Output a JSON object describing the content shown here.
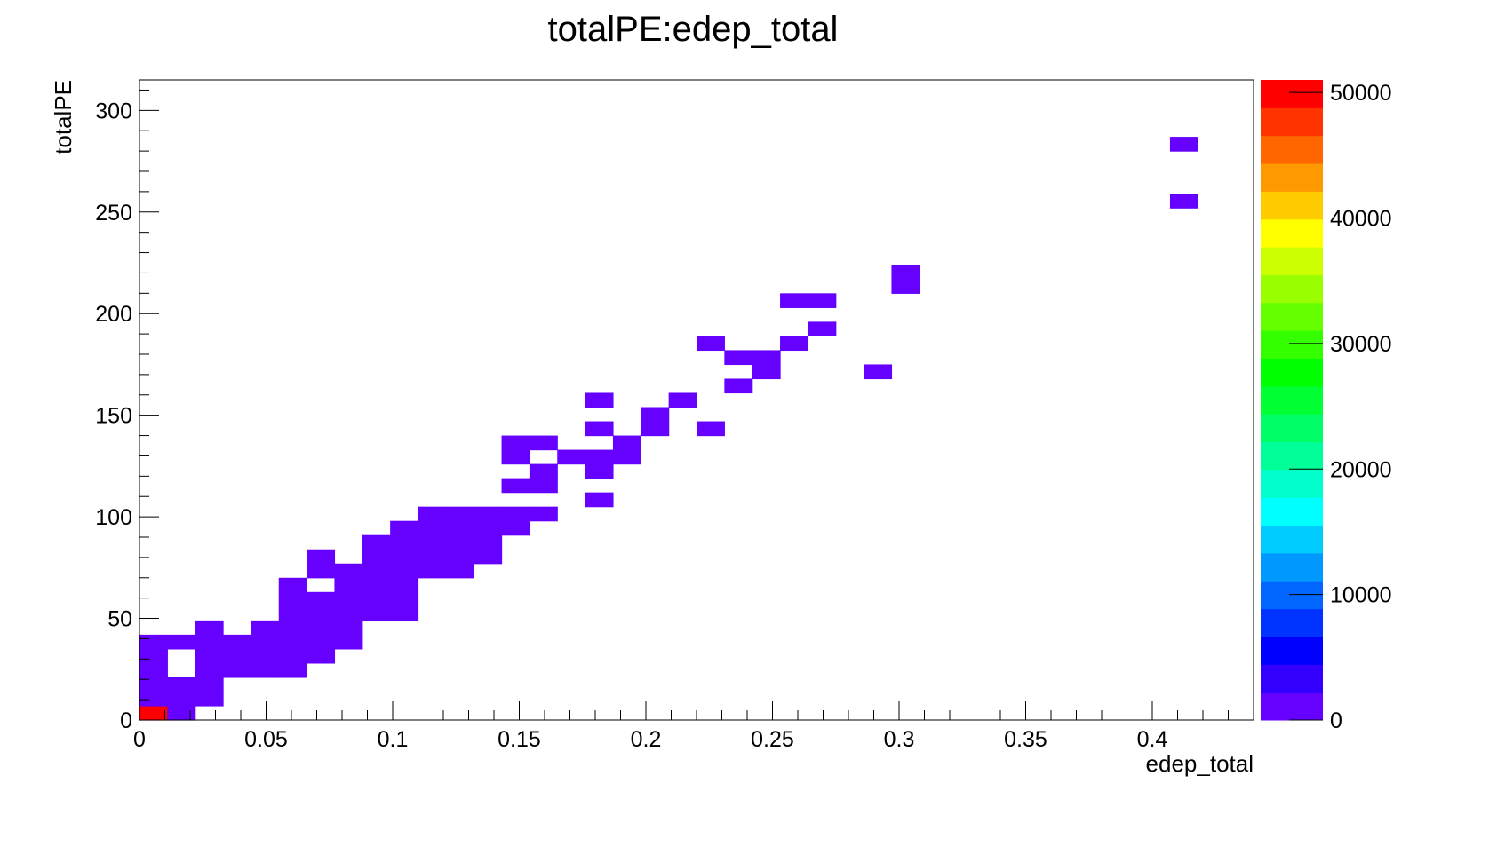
{
  "chart_data": {
    "type": "heatmap",
    "title": "totalPE:edep_total",
    "xlabel": "edep_total",
    "ylabel": "totalPE",
    "xlim": [
      0,
      0.44
    ],
    "ylim": [
      0,
      315
    ],
    "x_ticks": [
      "0",
      "0.05",
      "0.1",
      "0.15",
      "0.2",
      "0.25",
      "0.3",
      "0.35",
      "0.4"
    ],
    "x_tick_values": [
      0,
      0.05,
      0.1,
      0.15,
      0.2,
      0.25,
      0.3,
      0.35,
      0.4
    ],
    "y_ticks": [
      "0",
      "50",
      "100",
      "150",
      "200",
      "250",
      "300"
    ],
    "y_tick_values": [
      0,
      50,
      100,
      150,
      200,
      250,
      300
    ],
    "colorbar": {
      "ticks": [
        "0",
        "10000",
        "20000",
        "30000",
        "40000",
        "50000"
      ],
      "tick_values": [
        0,
        10000,
        20000,
        30000,
        40000,
        50000
      ],
      "zmax": 51000
    },
    "bin_width": 0.011,
    "bin_height": 7.0,
    "cells": [
      {
        "x": 0.0,
        "y": 0.0,
        "z": 51000
      },
      {
        "x": 0.011,
        "y": 0.0,
        "z": 1
      },
      {
        "x": 0.0,
        "y": 7.0,
        "z": 1
      },
      {
        "x": 0.011,
        "y": 7.0,
        "z": 1
      },
      {
        "x": 0.022,
        "y": 7.0,
        "z": 1
      },
      {
        "x": 0.0,
        "y": 14.0,
        "z": 1
      },
      {
        "x": 0.011,
        "y": 14.0,
        "z": 1
      },
      {
        "x": 0.022,
        "y": 14.0,
        "z": 1
      },
      {
        "x": 0.0,
        "y": 21.0,
        "z": 1
      },
      {
        "x": 0.022,
        "y": 21.0,
        "z": 1
      },
      {
        "x": 0.033,
        "y": 21.0,
        "z": 1
      },
      {
        "x": 0.044,
        "y": 21.0,
        "z": 1
      },
      {
        "x": 0.055,
        "y": 21.0,
        "z": 1
      },
      {
        "x": 0.0,
        "y": 28.0,
        "z": 1
      },
      {
        "x": 0.022,
        "y": 28.0,
        "z": 1
      },
      {
        "x": 0.033,
        "y": 28.0,
        "z": 1
      },
      {
        "x": 0.044,
        "y": 28.0,
        "z": 1
      },
      {
        "x": 0.055,
        "y": 28.0,
        "z": 1
      },
      {
        "x": 0.066,
        "y": 28.0,
        "z": 1
      },
      {
        "x": 0.0,
        "y": 35.0,
        "z": 1
      },
      {
        "x": 0.011,
        "y": 35.0,
        "z": 1
      },
      {
        "x": 0.022,
        "y": 35.0,
        "z": 1
      },
      {
        "x": 0.033,
        "y": 35.0,
        "z": 1
      },
      {
        "x": 0.044,
        "y": 35.0,
        "z": 1
      },
      {
        "x": 0.055,
        "y": 35.0,
        "z": 1
      },
      {
        "x": 0.066,
        "y": 35.0,
        "z": 1
      },
      {
        "x": 0.077,
        "y": 35.0,
        "z": 1
      },
      {
        "x": 0.022,
        "y": 42.0,
        "z": 1
      },
      {
        "x": 0.044,
        "y": 42.0,
        "z": 1
      },
      {
        "x": 0.055,
        "y": 42.0,
        "z": 1
      },
      {
        "x": 0.066,
        "y": 42.0,
        "z": 1
      },
      {
        "x": 0.077,
        "y": 42.0,
        "z": 1
      },
      {
        "x": 0.055,
        "y": 49.0,
        "z": 1
      },
      {
        "x": 0.066,
        "y": 49.0,
        "z": 1
      },
      {
        "x": 0.077,
        "y": 49.0,
        "z": 1
      },
      {
        "x": 0.088,
        "y": 49.0,
        "z": 1
      },
      {
        "x": 0.099,
        "y": 49.0,
        "z": 1
      },
      {
        "x": 0.055,
        "y": 56.0,
        "z": 1
      },
      {
        "x": 0.066,
        "y": 56.0,
        "z": 1
      },
      {
        "x": 0.077,
        "y": 56.0,
        "z": 1
      },
      {
        "x": 0.088,
        "y": 56.0,
        "z": 1
      },
      {
        "x": 0.099,
        "y": 56.0,
        "z": 1
      },
      {
        "x": 0.055,
        "y": 63.0,
        "z": 1
      },
      {
        "x": 0.077,
        "y": 63.0,
        "z": 1
      },
      {
        "x": 0.088,
        "y": 63.0,
        "z": 1
      },
      {
        "x": 0.099,
        "y": 63.0,
        "z": 1
      },
      {
        "x": 0.066,
        "y": 70.0,
        "z": 1
      },
      {
        "x": 0.077,
        "y": 70.0,
        "z": 1
      },
      {
        "x": 0.088,
        "y": 70.0,
        "z": 1
      },
      {
        "x": 0.099,
        "y": 70.0,
        "z": 1
      },
      {
        "x": 0.11,
        "y": 70.0,
        "z": 1
      },
      {
        "x": 0.121,
        "y": 70.0,
        "z": 1
      },
      {
        "x": 0.066,
        "y": 77.0,
        "z": 1
      },
      {
        "x": 0.088,
        "y": 77.0,
        "z": 1
      },
      {
        "x": 0.099,
        "y": 77.0,
        "z": 1
      },
      {
        "x": 0.11,
        "y": 77.0,
        "z": 1
      },
      {
        "x": 0.121,
        "y": 77.0,
        "z": 1
      },
      {
        "x": 0.132,
        "y": 77.0,
        "z": 1
      },
      {
        "x": 0.088,
        "y": 84.0,
        "z": 1
      },
      {
        "x": 0.099,
        "y": 84.0,
        "z": 1
      },
      {
        "x": 0.11,
        "y": 84.0,
        "z": 1
      },
      {
        "x": 0.121,
        "y": 84.0,
        "z": 1
      },
      {
        "x": 0.132,
        "y": 84.0,
        "z": 1
      },
      {
        "x": 0.099,
        "y": 91.0,
        "z": 1
      },
      {
        "x": 0.11,
        "y": 91.0,
        "z": 1
      },
      {
        "x": 0.121,
        "y": 91.0,
        "z": 1
      },
      {
        "x": 0.132,
        "y": 91.0,
        "z": 1
      },
      {
        "x": 0.143,
        "y": 91.0,
        "z": 1
      },
      {
        "x": 0.11,
        "y": 98.0,
        "z": 1
      },
      {
        "x": 0.121,
        "y": 98.0,
        "z": 1
      },
      {
        "x": 0.132,
        "y": 98.0,
        "z": 1
      },
      {
        "x": 0.143,
        "y": 98.0,
        "z": 1
      },
      {
        "x": 0.154,
        "y": 98.0,
        "z": 1
      },
      {
        "x": 0.176,
        "y": 105.0,
        "z": 1
      },
      {
        "x": 0.143,
        "y": 112.0,
        "z": 1
      },
      {
        "x": 0.154,
        "y": 112.0,
        "z": 1
      },
      {
        "x": 0.154,
        "y": 119.0,
        "z": 1
      },
      {
        "x": 0.176,
        "y": 119.0,
        "z": 1
      },
      {
        "x": 0.143,
        "y": 126.0,
        "z": 1
      },
      {
        "x": 0.165,
        "y": 126.0,
        "z": 1
      },
      {
        "x": 0.176,
        "y": 126.0,
        "z": 1
      },
      {
        "x": 0.187,
        "y": 126.0,
        "z": 1
      },
      {
        "x": 0.143,
        "y": 133.0,
        "z": 1
      },
      {
        "x": 0.154,
        "y": 133.0,
        "z": 1
      },
      {
        "x": 0.187,
        "y": 133.0,
        "z": 1
      },
      {
        "x": 0.176,
        "y": 140.0,
        "z": 1
      },
      {
        "x": 0.198,
        "y": 140.0,
        "z": 1
      },
      {
        "x": 0.22,
        "y": 140.0,
        "z": 1
      },
      {
        "x": 0.198,
        "y": 147.0,
        "z": 1
      },
      {
        "x": 0.176,
        "y": 154.0,
        "z": 1
      },
      {
        "x": 0.209,
        "y": 154.0,
        "z": 1
      },
      {
        "x": 0.231,
        "y": 161.0,
        "z": 1
      },
      {
        "x": 0.242,
        "y": 168.0,
        "z": 1
      },
      {
        "x": 0.286,
        "y": 168.0,
        "z": 1
      },
      {
        "x": 0.231,
        "y": 175.0,
        "z": 1
      },
      {
        "x": 0.242,
        "y": 175.0,
        "z": 1
      },
      {
        "x": 0.22,
        "y": 182.0,
        "z": 1
      },
      {
        "x": 0.253,
        "y": 182.0,
        "z": 1
      },
      {
        "x": 0.264,
        "y": 189.0,
        "z": 1
      },
      {
        "x": 0.253,
        "y": 203.0,
        "z": 1
      },
      {
        "x": 0.264,
        "y": 203.0,
        "z": 1
      },
      {
        "x": 0.297,
        "y": 210.0,
        "z": 1
      },
      {
        "x": 0.297,
        "y": 217.0,
        "z": 1
      },
      {
        "x": 0.407,
        "y": 252.0,
        "z": 1
      },
      {
        "x": 0.407,
        "y": 280.0,
        "z": 1
      }
    ],
    "palette": [
      "#6600ff",
      "#3300ff",
      "#0000ff",
      "#0033ff",
      "#0066ff",
      "#0099ff",
      "#00ccff",
      "#00ffff",
      "#00ffcc",
      "#00ff99",
      "#00ff66",
      "#00ff33",
      "#00ff00",
      "#33ff00",
      "#66ff00",
      "#99ff00",
      "#ccff00",
      "#ffff00",
      "#ffcc00",
      "#ff9900",
      "#ff6600",
      "#ff3300",
      "#ff0000"
    ]
  }
}
